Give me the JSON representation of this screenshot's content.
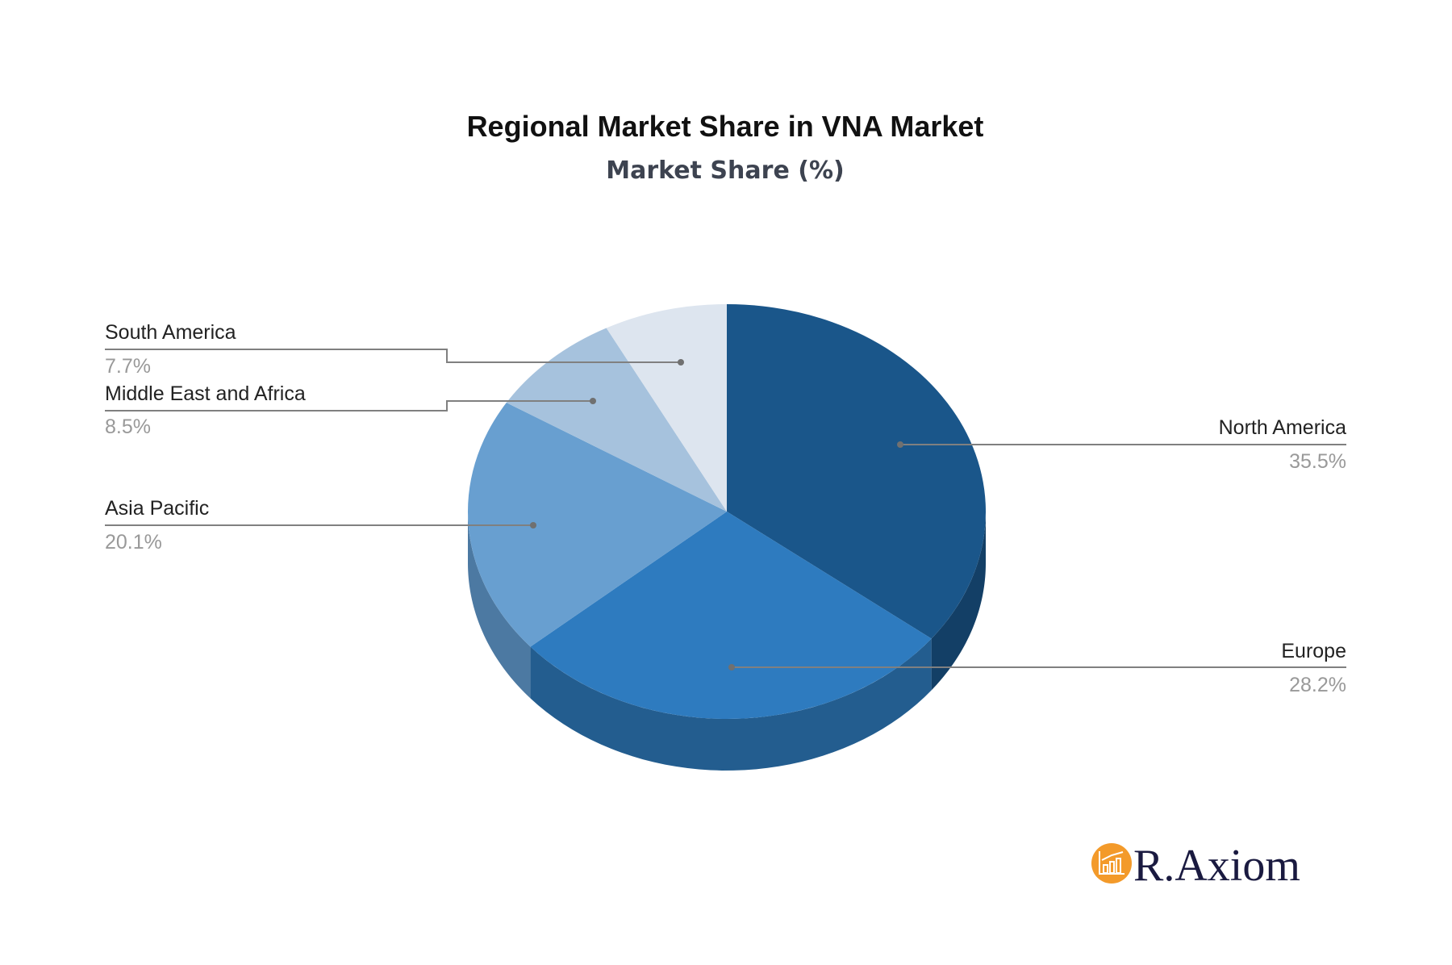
{
  "chart_data": {
    "type": "pie",
    "title": "Regional Market Share in VNA Market",
    "subtitle": "Market Share (%)",
    "style": "3d",
    "start": "12 o'clock, clockwise",
    "slices": [
      {
        "label": "North America",
        "value": 35.5,
        "display": "35.5%",
        "color": "#1a568a",
        "side": "#133f66"
      },
      {
        "label": "Europe",
        "value": 28.2,
        "display": "28.2%",
        "color": "#2e7bbf",
        "side": "#235d8f"
      },
      {
        "label": "Asia Pacific",
        "value": 20.1,
        "display": "20.1%",
        "color": "#689fd0",
        "side": "#4c79a2"
      },
      {
        "label": "Middle East and Africa",
        "value": 8.5,
        "display": "8.5%",
        "color": "#a6c2dd",
        "side": "#8199b0"
      },
      {
        "label": "South America",
        "value": 7.7,
        "display": "7.7%",
        "color": "#dde5ef",
        "side": "#b0b8c2"
      }
    ]
  },
  "logo": {
    "text": "R.Axiom",
    "color": "#f39a2a"
  }
}
